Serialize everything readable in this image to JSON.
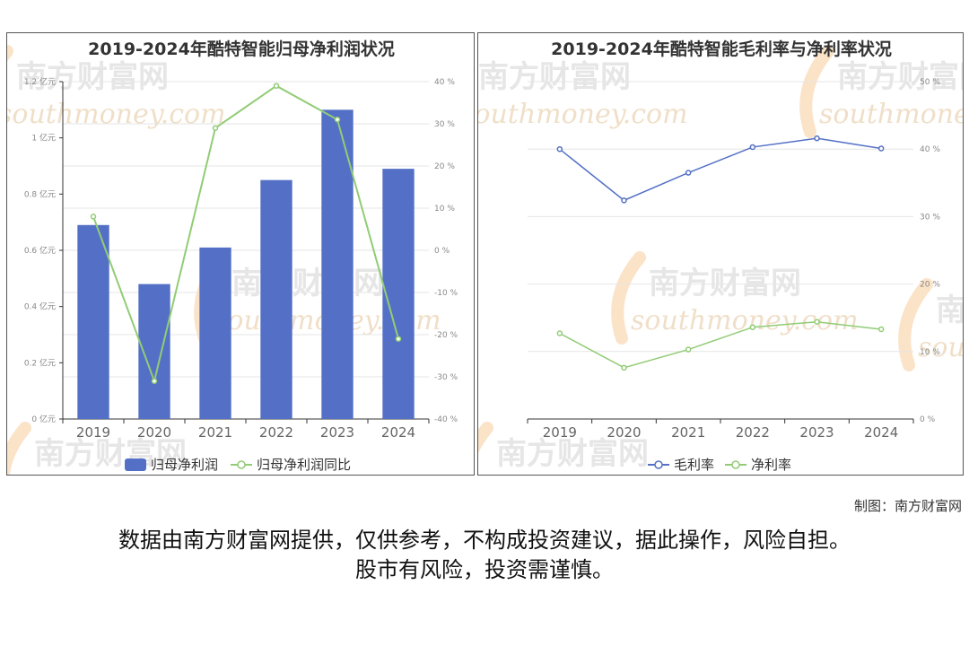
{
  "watermark": {
    "cn": "南方财富网",
    "en": "southmoney.com"
  },
  "chart_data": [
    {
      "type": "bar+line",
      "title": "2019-2024年酷特智能归母净利润状况",
      "categories": [
        "2019",
        "2020",
        "2021",
        "2022",
        "2023",
        "2024"
      ],
      "series": [
        {
          "name": "归母净利润",
          "kind": "bar",
          "axis": "left",
          "values": [
            0.69,
            0.48,
            0.61,
            0.85,
            1.1,
            0.89
          ],
          "color": "#5470c6"
        },
        {
          "name": "归母净利润同比",
          "kind": "line",
          "axis": "right",
          "values": [
            8,
            -31,
            29,
            39,
            31,
            -21
          ],
          "color": "#91cc75"
        }
      ],
      "y_left": {
        "min": 0,
        "max": 1.2,
        "ticks": [
          0,
          0.2,
          0.4,
          0.6,
          0.8,
          1,
          1.2
        ],
        "tick_labels": [
          "0 亿元",
          "0.2 亿元",
          "0.4 亿元",
          "0.6 亿元",
          "0.8 亿元",
          "1 亿元",
          "1.2 亿元"
        ]
      },
      "y_right": {
        "min": -40,
        "max": 40,
        "ticks": [
          -40,
          -30,
          -20,
          -10,
          0,
          10,
          20,
          30,
          40
        ],
        "tick_labels": [
          "-40 %",
          "-30 %",
          "-20 %",
          "-10 %",
          "0 %",
          "10 %",
          "20 %",
          "30 %",
          "40 %"
        ]
      },
      "legend_position": "bottom",
      "grid": true
    },
    {
      "type": "line",
      "title": "2019-2024年酷特智能毛利率与净利率状况",
      "categories": [
        "2019",
        "2020",
        "2021",
        "2022",
        "2023",
        "2024"
      ],
      "series": [
        {
          "name": "毛利率",
          "values": [
            40,
            32.4,
            36.5,
            40.3,
            41.6,
            40.1
          ],
          "color": "#5470c6"
        },
        {
          "name": "净利率",
          "values": [
            12.7,
            7.6,
            10.3,
            13.6,
            14.4,
            13.3
          ],
          "color": "#91cc75"
        }
      ],
      "y": {
        "min": 0,
        "max": 50,
        "ticks": [
          0,
          10,
          20,
          30,
          40,
          50
        ],
        "tick_labels": [
          "0 %",
          "10 %",
          "20 %",
          "30 %",
          "40 %",
          "50 %"
        ]
      },
      "legend_position": "bottom",
      "grid": true
    }
  ],
  "footer": {
    "credit": "制图：南方财富网",
    "disclaimer_line1": "数据由南方财富网提供，仅供参考，不构成投资建议，据此操作，风险自担。",
    "disclaimer_line2": "股市有风险，投资需谨慎。"
  }
}
